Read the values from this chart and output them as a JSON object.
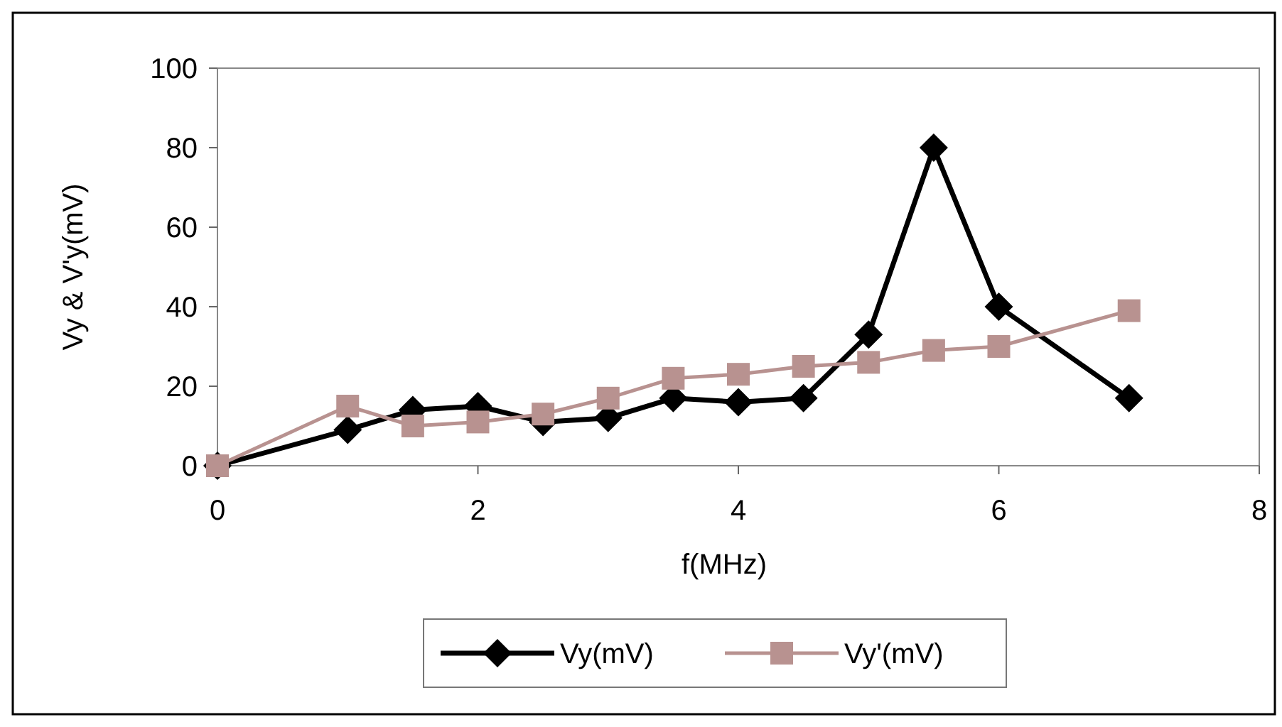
{
  "chart_data": {
    "type": "line",
    "xlabel": "f(MHz)",
    "ylabel": "Vy & V'y(mV)",
    "xlim": [
      0,
      8
    ],
    "xticks": [
      0,
      2,
      4,
      6,
      8
    ],
    "ylim": [
      0,
      100
    ],
    "yticks": [
      0,
      20,
      40,
      60,
      80,
      100
    ],
    "grid": false,
    "legend": "bottom",
    "x": [
      0,
      1,
      1.5,
      2,
      2.5,
      3,
      3.5,
      4,
      4.5,
      5,
      5.5,
      6,
      7
    ],
    "series": [
      {
        "name": "Vy(mV)",
        "color": "#000000",
        "marker": "diamond",
        "values": [
          0,
          9,
          14,
          15,
          11,
          12,
          17,
          16,
          17,
          33,
          80,
          40,
          17
        ]
      },
      {
        "name": "Vy'(mV)",
        "color": "#b89290",
        "marker": "square",
        "values": [
          0,
          15,
          10,
          11,
          13,
          17,
          22,
          23,
          25,
          26,
          29,
          30,
          39
        ]
      }
    ]
  }
}
